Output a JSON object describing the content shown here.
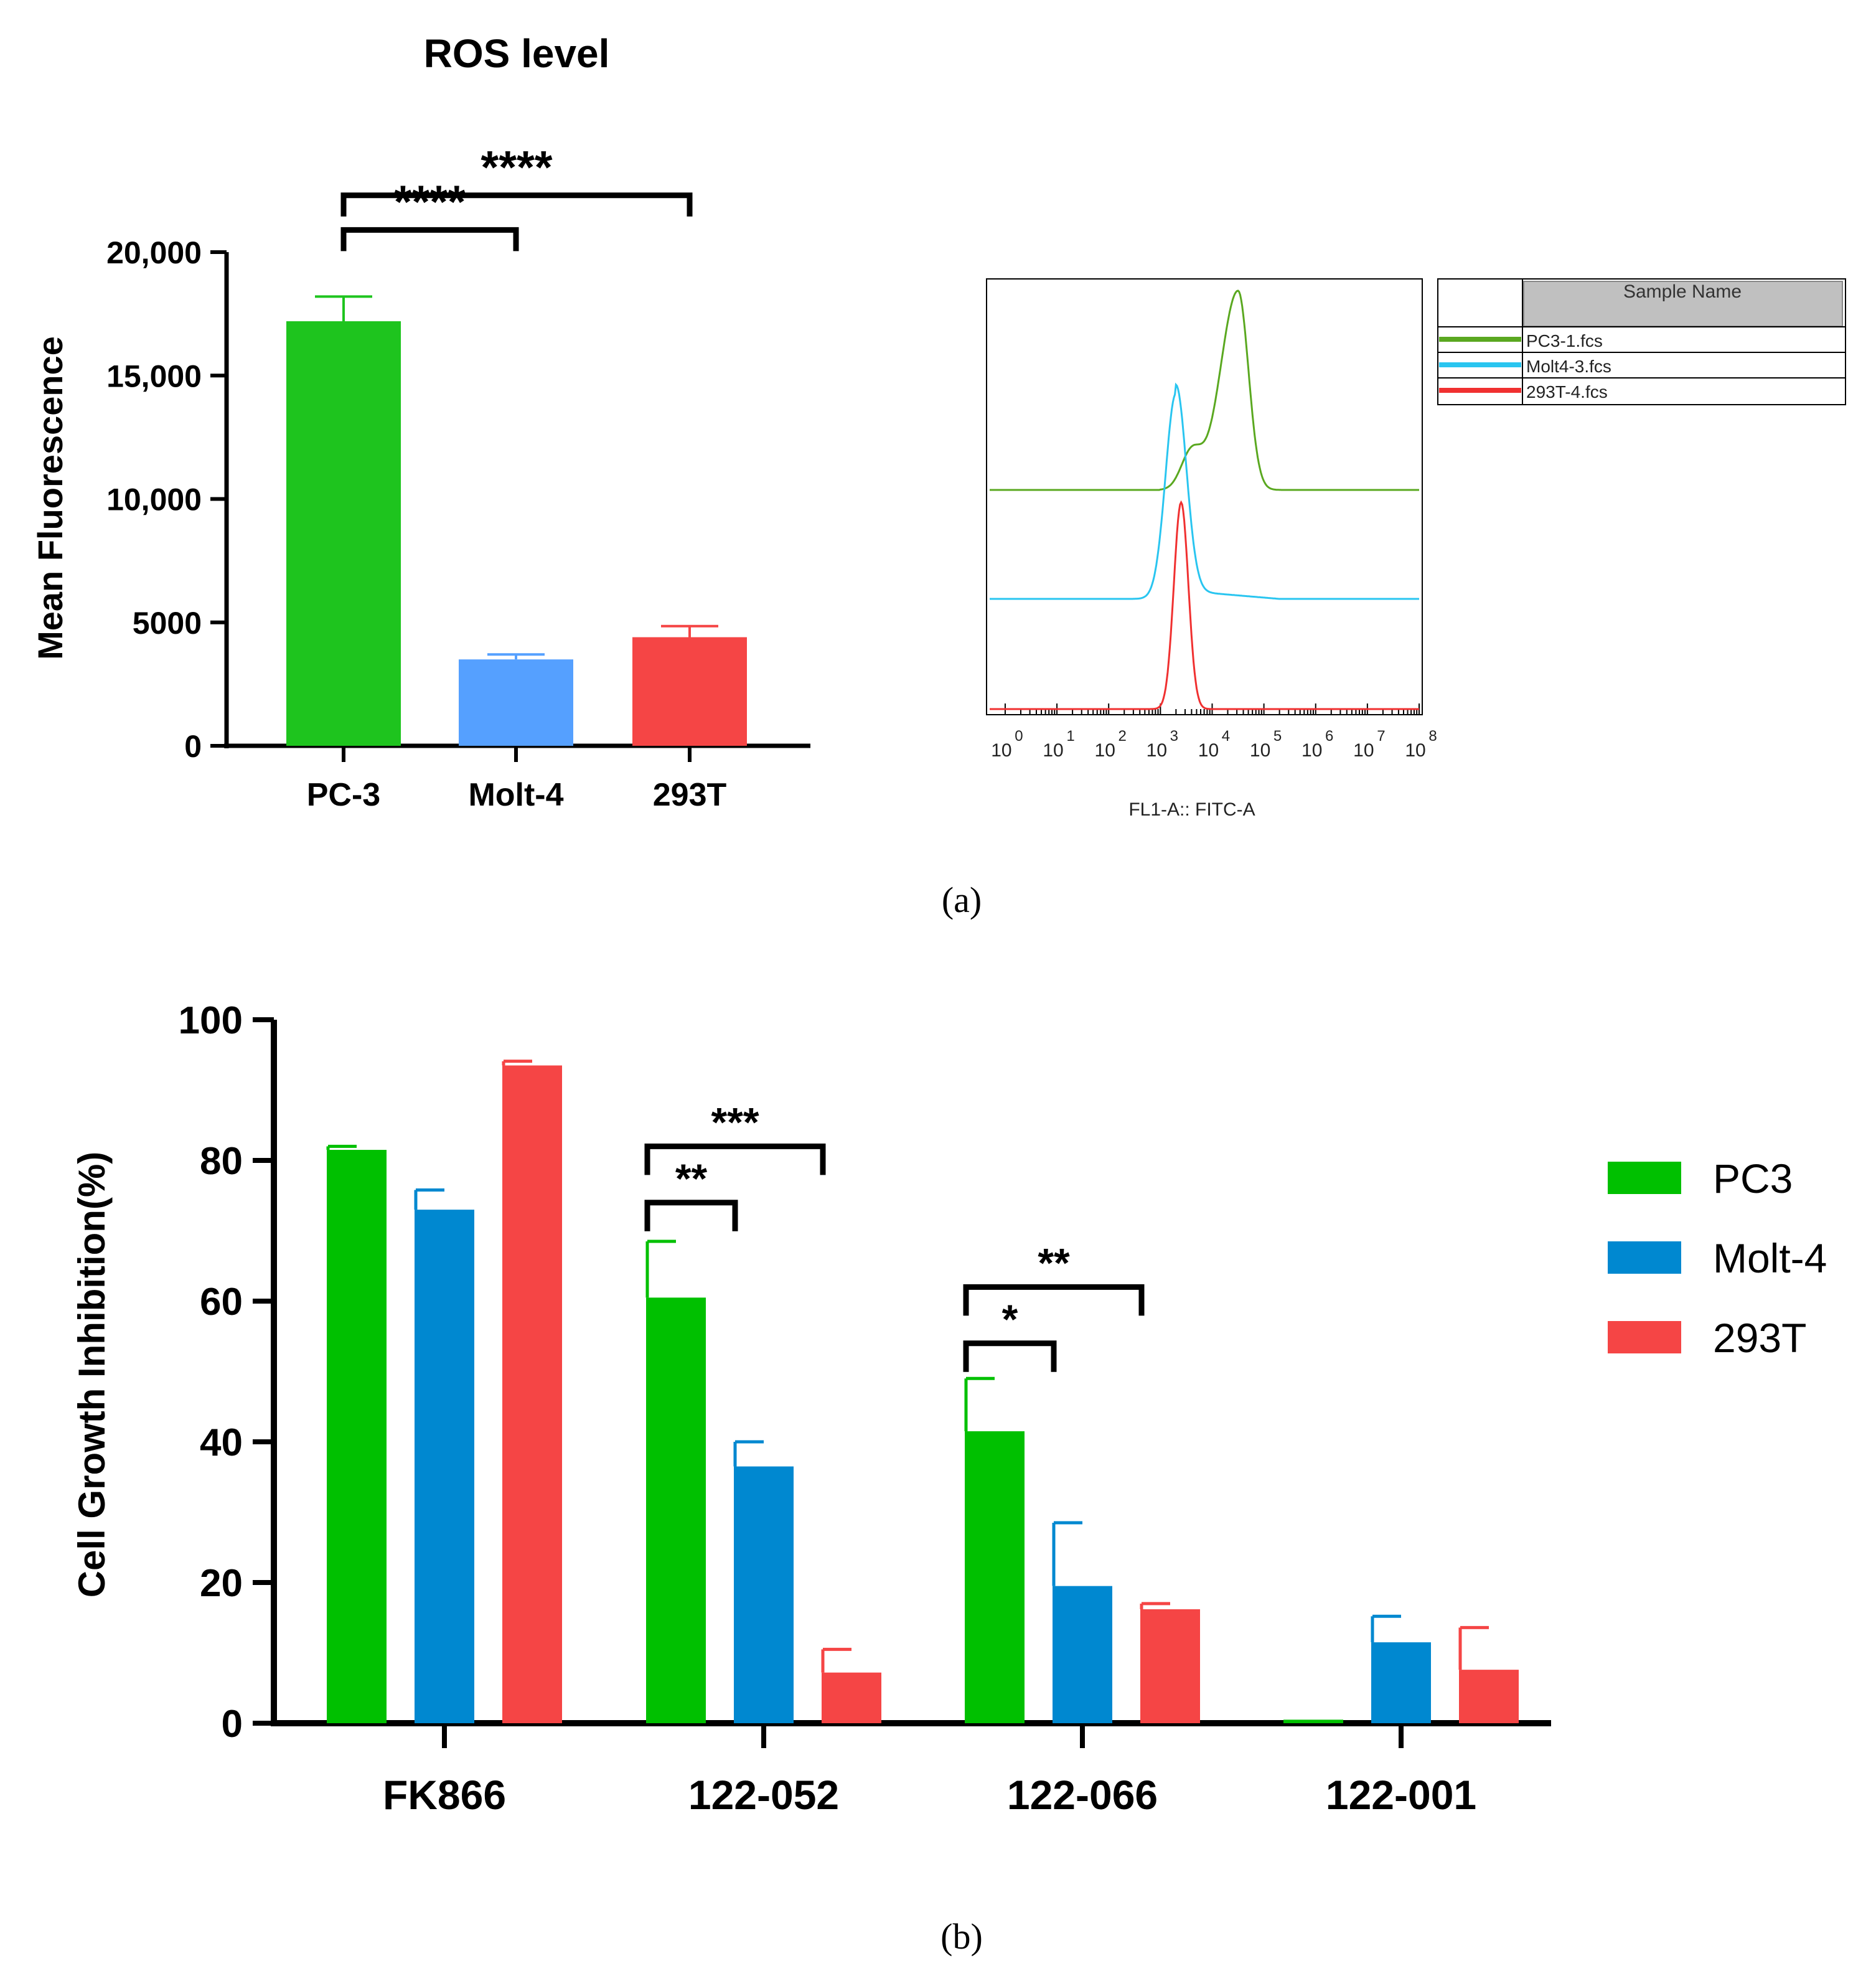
{
  "chart_data": [
    {
      "panel": "a-left",
      "type": "bar",
      "title": "ROS level",
      "xlabel": "",
      "ylabel": "Mean Fluorescence",
      "ylim": [
        0,
        20000
      ],
      "yticks": [
        0,
        5000,
        10000,
        15000,
        20000
      ],
      "ytick_labels": [
        "0",
        "5000",
        "10,000",
        "15,000",
        "20,000"
      ],
      "categories": [
        "PC-3",
        "Molt-4",
        "293T"
      ],
      "values": [
        17200,
        3500,
        4400
      ],
      "errors": [
        1000,
        200,
        450
      ],
      "colors": [
        "#1ec41e",
        "#55a0ff",
        "#f54545"
      ],
      "significance": [
        {
          "from": 0,
          "to": 1,
          "label": "****",
          "level": 20900
        },
        {
          "from": 0,
          "to": 2,
          "label": "****",
          "level": 22300
        }
      ]
    },
    {
      "panel": "a-right",
      "type": "line",
      "xlabel": "FL1-A:: FITC-A",
      "x_scale": "log",
      "x_tick_labels": [
        "0",
        "1",
        "2",
        "3",
        "4",
        "5",
        "6",
        "7",
        "8"
      ],
      "x_tick_base": "10",
      "legend_header": "Sample Name",
      "series": [
        {
          "name": "PC3-1.fcs",
          "color": "#5aa820",
          "peak_log10": 4.5
        },
        {
          "name": "Molt4-3.fcs",
          "color": "#29c5f0",
          "peak_log10": 3.3
        },
        {
          "name": "293T-4.fcs",
          "color": "#f03030",
          "peak_log10": 3.4
        }
      ]
    },
    {
      "panel": "b",
      "type": "bar",
      "title": "",
      "xlabel": "",
      "ylabel": "Cell Growth Inhibition(%)",
      "ylim": [
        0,
        100
      ],
      "yticks": [
        0,
        20,
        40,
        60,
        80,
        100
      ],
      "categories": [
        "FK866",
        "122-052",
        "122-066",
        "122-001"
      ],
      "series": [
        {
          "name": "PC3",
          "color": "#00c000",
          "values": [
            81.5,
            60.5,
            41.5,
            0.5
          ],
          "errors": [
            0.5,
            8,
            7.5,
            0
          ]
        },
        {
          "name": "Molt-4",
          "color": "#0088d0",
          "values": [
            73,
            36.5,
            19.5,
            11.5
          ],
          "errors": [
            2.8,
            3.5,
            9,
            3.7
          ]
        },
        {
          "name": "293T",
          "color": "#f54545",
          "values": [
            93.5,
            7.2,
            16.2,
            7.6
          ],
          "errors": [
            0.6,
            3.3,
            0.8,
            6
          ]
        }
      ],
      "legend": [
        "PC3",
        "Molt-4",
        "293T"
      ],
      "significance": [
        {
          "group": 1,
          "from": 0,
          "to": 1,
          "label": "**",
          "level": 74
        },
        {
          "group": 1,
          "from": 0,
          "to": 2,
          "label": "***",
          "level": 82
        },
        {
          "group": 2,
          "from": 0,
          "to": 1,
          "label": "*",
          "level": 54
        },
        {
          "group": 2,
          "from": 0,
          "to": 2,
          "label": "**",
          "level": 62
        }
      ]
    }
  ],
  "captions": {
    "a": "(a)",
    "b": "(b)"
  }
}
